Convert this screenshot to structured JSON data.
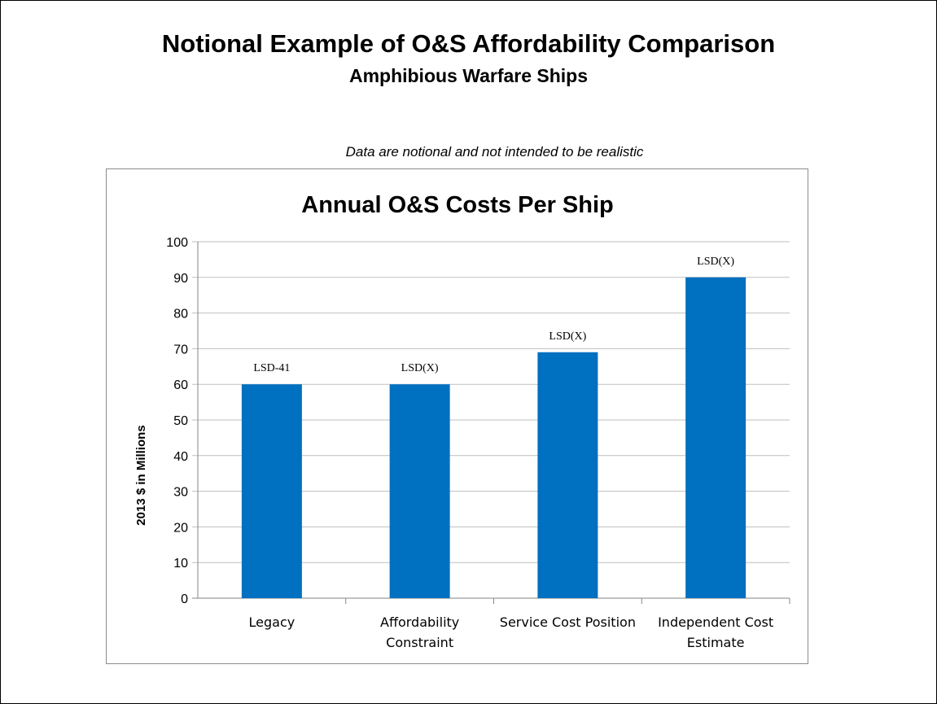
{
  "slide": {
    "title": "Notional Example of O&S Affordability Comparison",
    "subtitle": "Amphibious Warfare Ships",
    "note": "Data are notional and not intended to be realistic"
  },
  "chart_data": {
    "type": "bar",
    "title": "Annual O&S Costs Per Ship",
    "xlabel": "",
    "ylabel": "2013 $ in Millions",
    "ylim": [
      0,
      100
    ],
    "yticks": [
      0,
      10,
      20,
      30,
      40,
      50,
      60,
      70,
      80,
      90,
      100
    ],
    "grid": true,
    "legend": "none",
    "categories": [
      [
        "Legacy"
      ],
      [
        "Affordability",
        "Constraint"
      ],
      [
        "Service Cost Position"
      ],
      [
        "Independent Cost",
        "Estimate"
      ]
    ],
    "values": [
      60,
      60,
      69,
      90
    ],
    "data_labels": [
      "LSD-41",
      "LSD(X)",
      "LSD(X)",
      "LSD(X)"
    ],
    "bar_color": "#0070c0"
  }
}
